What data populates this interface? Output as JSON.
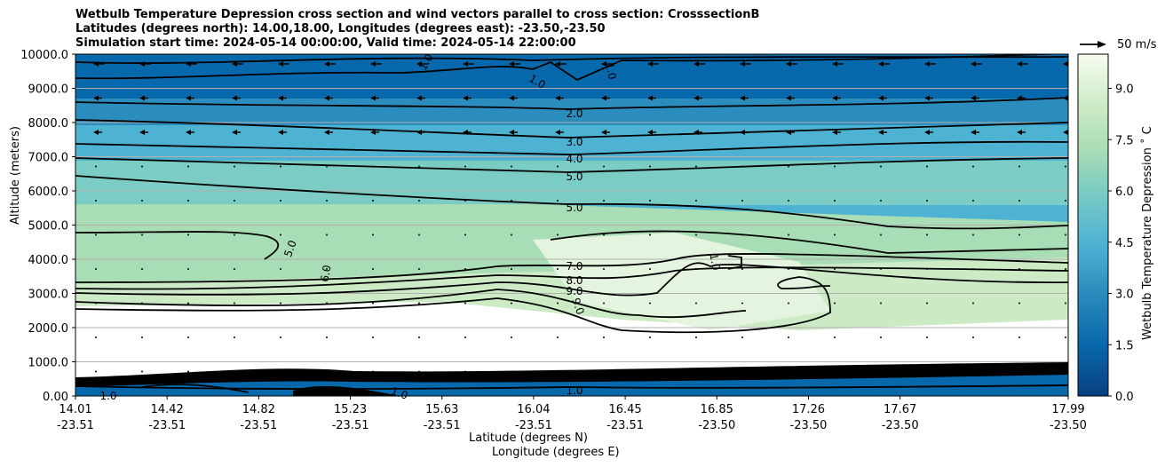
{
  "title": {
    "line1": "Wetbulb Temperature Depression cross section and wind vectors parallel to cross section: CrosssectionB",
    "line2": "Latitudes (degrees north): 14.00,18.00, Longitudes (degrees east): -23.50,-23.50",
    "line3": "Simulation start time: 2024-05-14 00:00:00, Valid time: 2024-05-14 22:00:00"
  },
  "axes": {
    "ylabel": "Altitude (meters)",
    "xlabel_lat": "Latitude (degrees N)",
    "xlabel_lon": "Longitude (degrees E)",
    "colorbar_label": "Wetbulb Temperature Depression ˚ C",
    "vector_key": "50 m/s"
  },
  "colors": {
    "dark": "#084a91",
    "mid": "#2b8cbe",
    "light": "#7bccc4",
    "pale": "#ccebc5",
    "white": "#ffffff"
  },
  "chart_data": {
    "type": "heatmap",
    "title": "Wetbulb Temperature Depression cross section and wind vectors parallel to cross section: CrosssectionB",
    "ylim": [
      0,
      10000
    ],
    "y_ticks": [
      "0.00",
      "1000.0",
      "2000.0",
      "3000.0",
      "4000.0",
      "5000.0",
      "6000.0",
      "7000.0",
      "8000.0",
      "9000.0",
      "10000.0"
    ],
    "x_ticks": [
      {
        "lat": "14.01",
        "lon": "-23.51"
      },
      {
        "lat": "14.42",
        "lon": "-23.51"
      },
      {
        "lat": "14.82",
        "lon": "-23.51"
      },
      {
        "lat": "15.23",
        "lon": "-23.51"
      },
      {
        "lat": "15.63",
        "lon": "-23.51"
      },
      {
        "lat": "16.04",
        "lon": "-23.51"
      },
      {
        "lat": "16.45",
        "lon": "-23.51"
      },
      {
        "lat": "16.85",
        "lon": "-23.50"
      },
      {
        "lat": "17.26",
        "lon": "-23.50"
      },
      {
        "lat": "17.67",
        "lon": "-23.50"
      },
      {
        "lat": "17.99",
        "lon": "-23.50"
      }
    ],
    "colorbar": {
      "min": 0.0,
      "max": 10.0,
      "ticks": [
        "0.0",
        "1.5",
        "3.0",
        "4.5",
        "6.0",
        "7.5",
        "9.0"
      ]
    },
    "grid": true,
    "contour_labels": [
      "1.0",
      "1.0",
      "1.0",
      "2.0",
      "3.0",
      "4.0",
      "5.0",
      "5.0",
      "5.0",
      "6.0",
      "7.0",
      "8.0",
      "9.0",
      "9.0",
      "1.0",
      "1.0",
      "1.0",
      "1.0"
    ],
    "contour_levels": [
      1.0,
      2.0,
      3.0,
      4.0,
      5.0,
      6.0,
      7.0,
      8.0,
      9.0
    ]
  }
}
